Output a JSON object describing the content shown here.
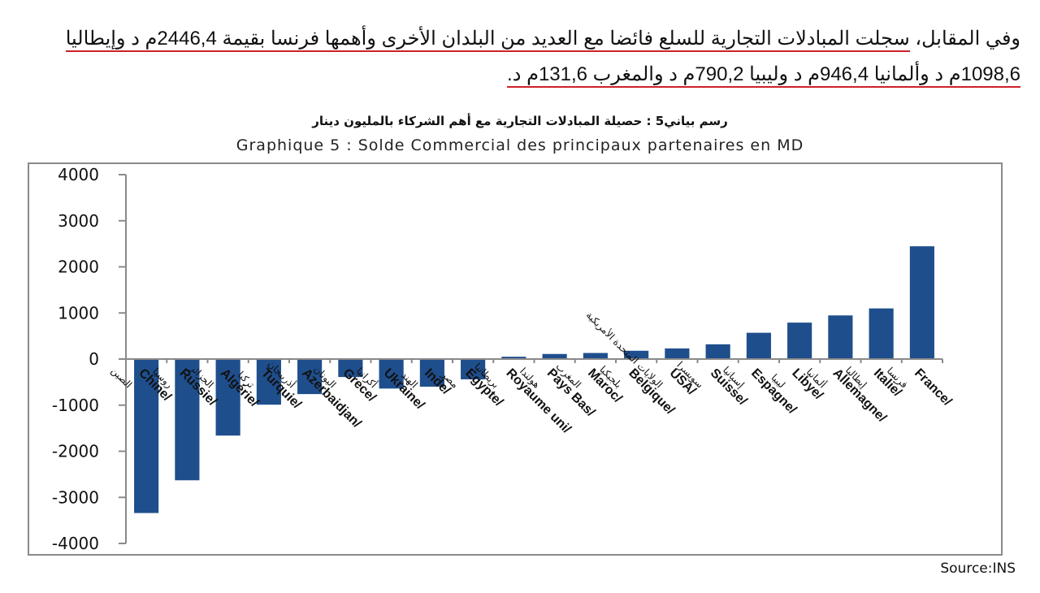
{
  "paragraph": {
    "line1_prefix": "وفي المقابل، ",
    "line1_underlined": "سجلت المبادلات التجارية للسلع فائضا مع العديد من البلدان الأخرى وأهمها فرنسا بقيمة 2446,4م د وإيطاليا",
    "line2_underlined": "1098,6م د وألمانيا 946,4م د وليبيا 790,2م د والمغرب 131,6م د."
  },
  "chart_title_ar": "رسم بياني5 : حصيلة المبادلات التجارية مع أهم الشركاء بالمليون دينار",
  "chart_title_fr": "Graphique 5 : Solde Commercial des principaux partenaires en MD",
  "source": "Source:INS",
  "colors": {
    "bar": "#1f4e8c",
    "axis": "#8a8a8a",
    "underline": "#d0202a"
  },
  "chart_data": {
    "type": "bar",
    "title": "Graphique 5 : Solde Commercial des principaux partenaires en MD",
    "subtitle": "رسم بياني5 : حصيلة المبادلات التجارية مع أهم الشركاء بالمليون دينار",
    "xlabel": "",
    "ylabel": "MD",
    "ylim": [
      -4000,
      4000
    ],
    "yticks": [
      4000,
      3000,
      2000,
      1000,
      0,
      -1000,
      -2000,
      -3000,
      -4000
    ],
    "grid": false,
    "legend": null,
    "categories": [
      "Chine/ الصين",
      "Russie/ روسيا",
      "Algérie/ الجزائر",
      "Turquie/تركيا",
      "Azerbaidjan/أذربيجان",
      "Grece/اليونان",
      "Ukraine/أكرانيا",
      "Inde/ الهند",
      "Egypte/مصر",
      "Royaume uni/بريطانيا",
      "Pays Bas/ هولندا",
      "Maroc/المغرب",
      "Belgique/ بلجيكيا",
      "USA/ الولايات المتحدة الأمريكية",
      "Suisse/سويسرا",
      "Espagne/ إسبانيا",
      "Libye/ ليبيا",
      "Allemagne/ ألمانيا",
      "Italie/ إيطاليا",
      "France/ فرنسا"
    ],
    "labels_fr": [
      "Chine",
      "Russie",
      "Algérie",
      "Turquie",
      "Azerbaidjan",
      "Grece",
      "Ukraine",
      "Inde",
      "Egypte",
      "Royaume uni",
      "Pays Bas",
      "Maroc",
      "Belgique",
      "USA",
      "Suisse",
      "Espagne",
      "Libye",
      "Allemagne",
      "Italie",
      "France"
    ],
    "labels_ar": [
      "الصين",
      "روسيا",
      "الجزائر",
      "تركيا",
      "أذربيجان",
      "اليونان",
      "أكرانيا",
      "الهند",
      "مصر",
      "بريطانيا",
      "هولندا",
      "المغرب",
      "بلجيكيا",
      "الولايات المتحدة الأمريكية",
      "سويسرا",
      "إسبانيا",
      "ليبيا",
      "ألمانيا",
      "إيطاليا",
      "فرنسا"
    ],
    "values": [
      -3340,
      -2630,
      -1660,
      -990,
      -760,
      -390,
      -640,
      -600,
      -440,
      50,
      110,
      131.6,
      180,
      230,
      320,
      570,
      790.2,
      946.4,
      1098.6,
      2446.4
    ]
  }
}
